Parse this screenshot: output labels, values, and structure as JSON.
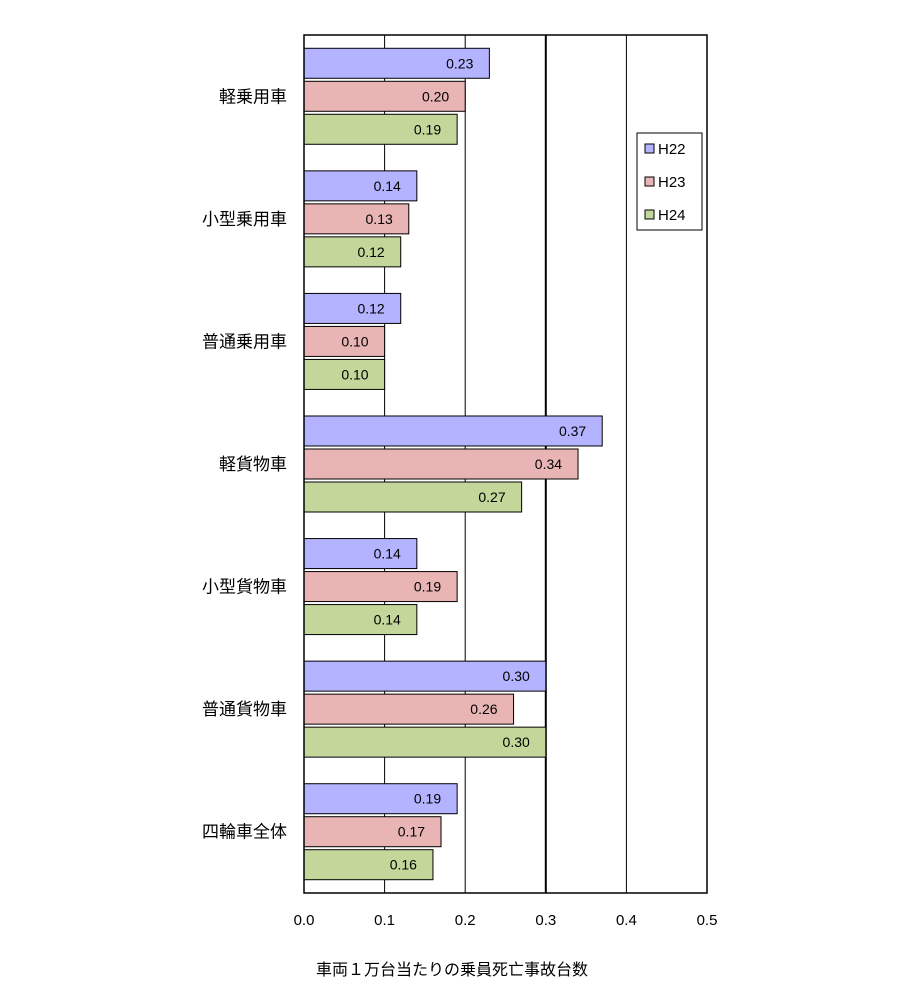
{
  "chart_data": {
    "type": "bar",
    "orientation": "horizontal",
    "categories": [
      "軽乗用車",
      "小型乗用車",
      "普通乗用車",
      "軽貨物車",
      "小型貨物車",
      "普通貨物車",
      "四輪車全体"
    ],
    "series": [
      {
        "name": "H22",
        "color": "#b3b3ff",
        "values": [
          0.23,
          0.14,
          0.12,
          0.37,
          0.14,
          0.3,
          0.19
        ],
        "labels": [
          "0.23",
          "0.14",
          "0.12",
          "0.37",
          "0.14",
          "0.30",
          "0.19"
        ]
      },
      {
        "name": "H23",
        "color": "#e8b4b4",
        "values": [
          0.2,
          0.13,
          0.1,
          0.34,
          0.19,
          0.26,
          0.17
        ],
        "labels": [
          "0.20",
          "0.13",
          "0.10",
          "0.34",
          "0.19",
          "0.26",
          "0.17"
        ]
      },
      {
        "name": "H24",
        "color": "#c4d79b",
        "values": [
          0.19,
          0.12,
          0.1,
          0.27,
          0.14,
          0.3,
          0.16
        ],
        "labels": [
          "0.19",
          "0.12",
          "0.10",
          "0.27",
          "0.14",
          "0.30",
          "0.16"
        ]
      }
    ],
    "xlabel": "車両１万台当たりの乗員死亡事故台数",
    "xlim": [
      0,
      0.5
    ],
    "xticks": [
      "0.0",
      "0.1",
      "0.2",
      "0.3",
      "0.4",
      "0.5"
    ],
    "grid": true,
    "legend": "top-right"
  }
}
